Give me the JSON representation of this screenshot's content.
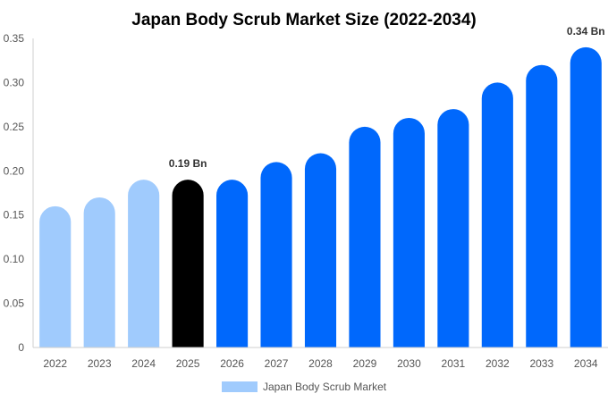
{
  "chart_data": {
    "type": "bar",
    "title": "Japan Body Scrub Market Size (2022-2034)",
    "xlabel": "",
    "ylabel": "",
    "categories": [
      "2022",
      "2023",
      "2024",
      "2025",
      "2026",
      "2027",
      "2028",
      "2029",
      "2030",
      "2031",
      "2032",
      "2033",
      "2034"
    ],
    "series": [
      {
        "name": "Japan Body Scrub Market",
        "values": [
          0.16,
          0.17,
          0.19,
          0.19,
          0.19,
          0.21,
          0.22,
          0.25,
          0.26,
          0.27,
          0.3,
          0.32,
          0.34
        ]
      }
    ],
    "ylim": [
      0,
      0.35
    ],
    "yticks": [
      "0",
      "0.05",
      "0.10",
      "0.15",
      "0.20",
      "0.25",
      "0.30",
      "0.35"
    ],
    "data_labels": [
      {
        "category": "2025",
        "text": "0.19 Bn"
      },
      {
        "category": "2034",
        "text": "0.34 Bn"
      }
    ],
    "grid": false,
    "legend_position": "bottom-center",
    "colors": {
      "historical": "#a0cbfd",
      "current": "#000000",
      "forecast": "#0068fc"
    },
    "bar_color_groups": [
      "historical",
      "historical",
      "historical",
      "current",
      "forecast",
      "forecast",
      "forecast",
      "forecast",
      "forecast",
      "forecast",
      "forecast",
      "forecast",
      "forecast"
    ]
  }
}
